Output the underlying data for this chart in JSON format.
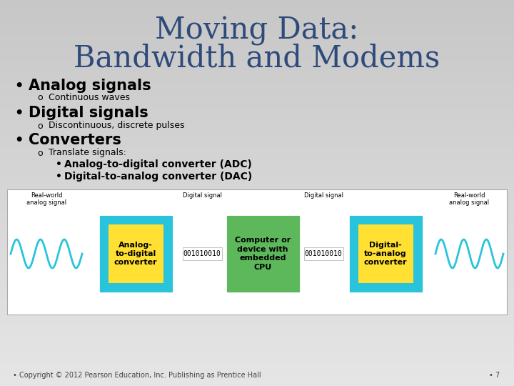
{
  "bg_color_top": "#c8c8c8",
  "bg_color_bottom": "#e5e5e5",
  "title_line1": "Moving Data:",
  "title_line2": "Bandwidth and Modems",
  "title_color": "#2E4A7A",
  "bullet1_text": "Analog signals",
  "bullet1_sub": "Continuous waves",
  "bullet2_text": "Digital signals",
  "bullet2_sub": "Discontinuous, discrete pulses",
  "bullet3_text": "Converters",
  "bullet3_sub": "Translate signals:",
  "sub_bullet1": "Analog-to-digital converter (ADC)",
  "sub_bullet2": "Digital-to-analog converter (DAC)",
  "footer": "Copyright © 2012 Pearson Education, Inc. Publishing as Prentice Hall",
  "page_num": "7",
  "cyan_box_color": "#29C4DC",
  "yellow_box_color": "#FFE033",
  "green_box_color": "#5DB85C",
  "label_adc": "Analog-\nto-digital\nconverter",
  "label_cpu": "Computer or\ndevice with\nembedded\nCPU",
  "label_dac": "Digital-\nto-analog\nconverter",
  "label_rw_left": "Real-world\nanalog signal",
  "label_rw_right": "Real-world\nanalog signal",
  "label_dig1": "Digital signal",
  "label_dig2": "Digital signal",
  "bits": "001010010",
  "wave_color": "#29C4DC"
}
